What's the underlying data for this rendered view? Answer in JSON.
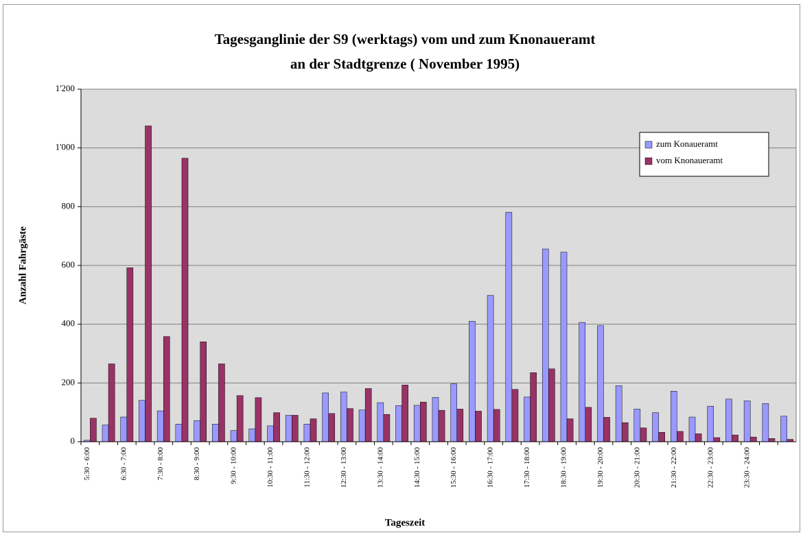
{
  "chart_data": {
    "type": "bar",
    "title": [
      "Tagesganglinie der S9 (werktags)  vom und  zum Knonaueramt",
      "an der Stadtgrenze ( November  1995)"
    ],
    "x_label": "Tageszeit",
    "y_label": "Anzahl Fahrgäste",
    "categories": [
      "5:30 - 6:00",
      null,
      "6:30 - 7:00",
      null,
      "7:30 - 8:00",
      null,
      "8:30 - 9:00",
      null,
      "9:30 - 10:00",
      null,
      "10:30 - 11:00",
      null,
      "11:30 - 12:00",
      null,
      "12:30 - 13:00",
      null,
      "13:30 - 14:00",
      null,
      "14:30 - 15:00",
      null,
      "15:30 - 16:00",
      null,
      "16:30 - 17:00",
      null,
      "17:30 - 18:00",
      null,
      "18:30 - 19:00",
      null,
      "19:30 - 20:00",
      null,
      "20:30 - 21:00",
      null,
      "21:30 - 22:00",
      null,
      "22:30 - 23:00",
      null,
      "23:30 - 24:00",
      null,
      null
    ],
    "series": [
      {
        "name": "zum Konaueramt",
        "color": "#9999ff",
        "values": [
          5,
          57,
          84,
          141,
          105,
          60,
          72,
          60,
          38,
          44,
          54,
          90,
          60,
          166,
          169,
          108,
          133,
          123,
          124,
          151,
          197,
          410,
          498,
          781,
          152,
          656,
          645,
          406,
          395,
          191,
          111,
          99,
          172,
          84,
          121,
          145,
          139,
          130,
          87
        ]
      },
      {
        "name": "vom Knonaueramt",
        "color": "#993366",
        "values": [
          80,
          265,
          592,
          1075,
          358,
          965,
          340,
          265,
          157,
          150,
          99,
          90,
          78,
          96,
          113,
          181,
          93,
          193,
          135,
          107,
          111,
          104,
          110,
          178,
          235,
          248,
          78,
          117,
          83,
          65,
          47,
          32,
          35,
          27,
          14,
          23,
          16,
          11,
          8
        ]
      }
    ],
    "ylim": [
      0,
      1200
    ],
    "yticks": [
      0,
      200,
      400,
      600,
      800,
      {
        "value": 1000,
        "label": "1'000"
      },
      {
        "value": 1200,
        "label": "1'200"
      }
    ],
    "grid": true,
    "legend": "upper right"
  }
}
